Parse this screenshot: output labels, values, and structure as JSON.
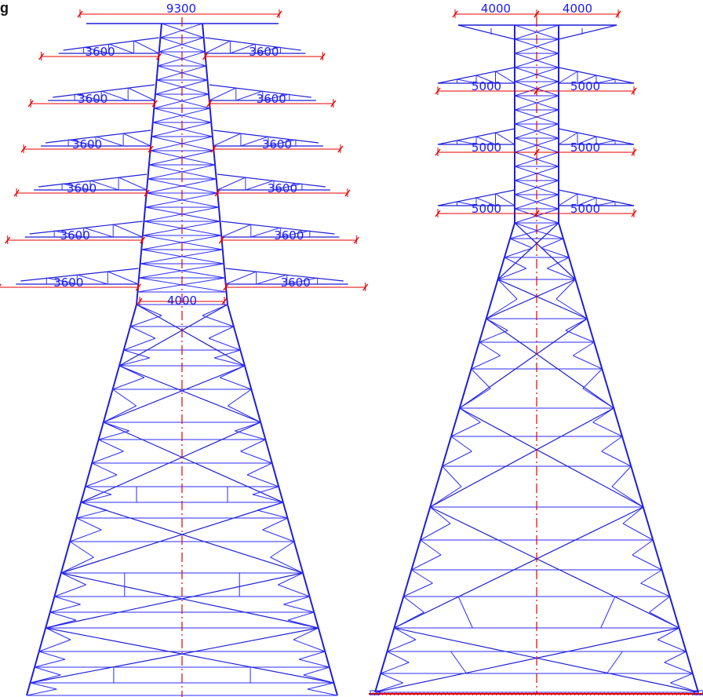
{
  "figure_tag": "g",
  "colors": {
    "member": "#1f1fd6",
    "bracing": "#2b2bff",
    "centerline": "#e60000",
    "dimension": "#e60000",
    "dimension_text": "#1a1aff",
    "ground": "#e60000"
  },
  "left_tower": {
    "top_width_label": "9300",
    "waist_width_label": "4000",
    "arm_labels": [
      [
        "3600",
        "3600"
      ],
      [
        "3600",
        "3600"
      ],
      [
        "3600",
        "3600"
      ],
      [
        "3600",
        "3600"
      ],
      [
        "3600",
        "3600"
      ],
      [
        "3600",
        "3600"
      ]
    ]
  },
  "right_tower": {
    "top_labels": [
      "4000",
      "4000"
    ],
    "arm_labels": [
      [
        "5000",
        "5000"
      ],
      [
        "5000",
        "5000"
      ],
      [
        "5000",
        "5000"
      ]
    ]
  }
}
